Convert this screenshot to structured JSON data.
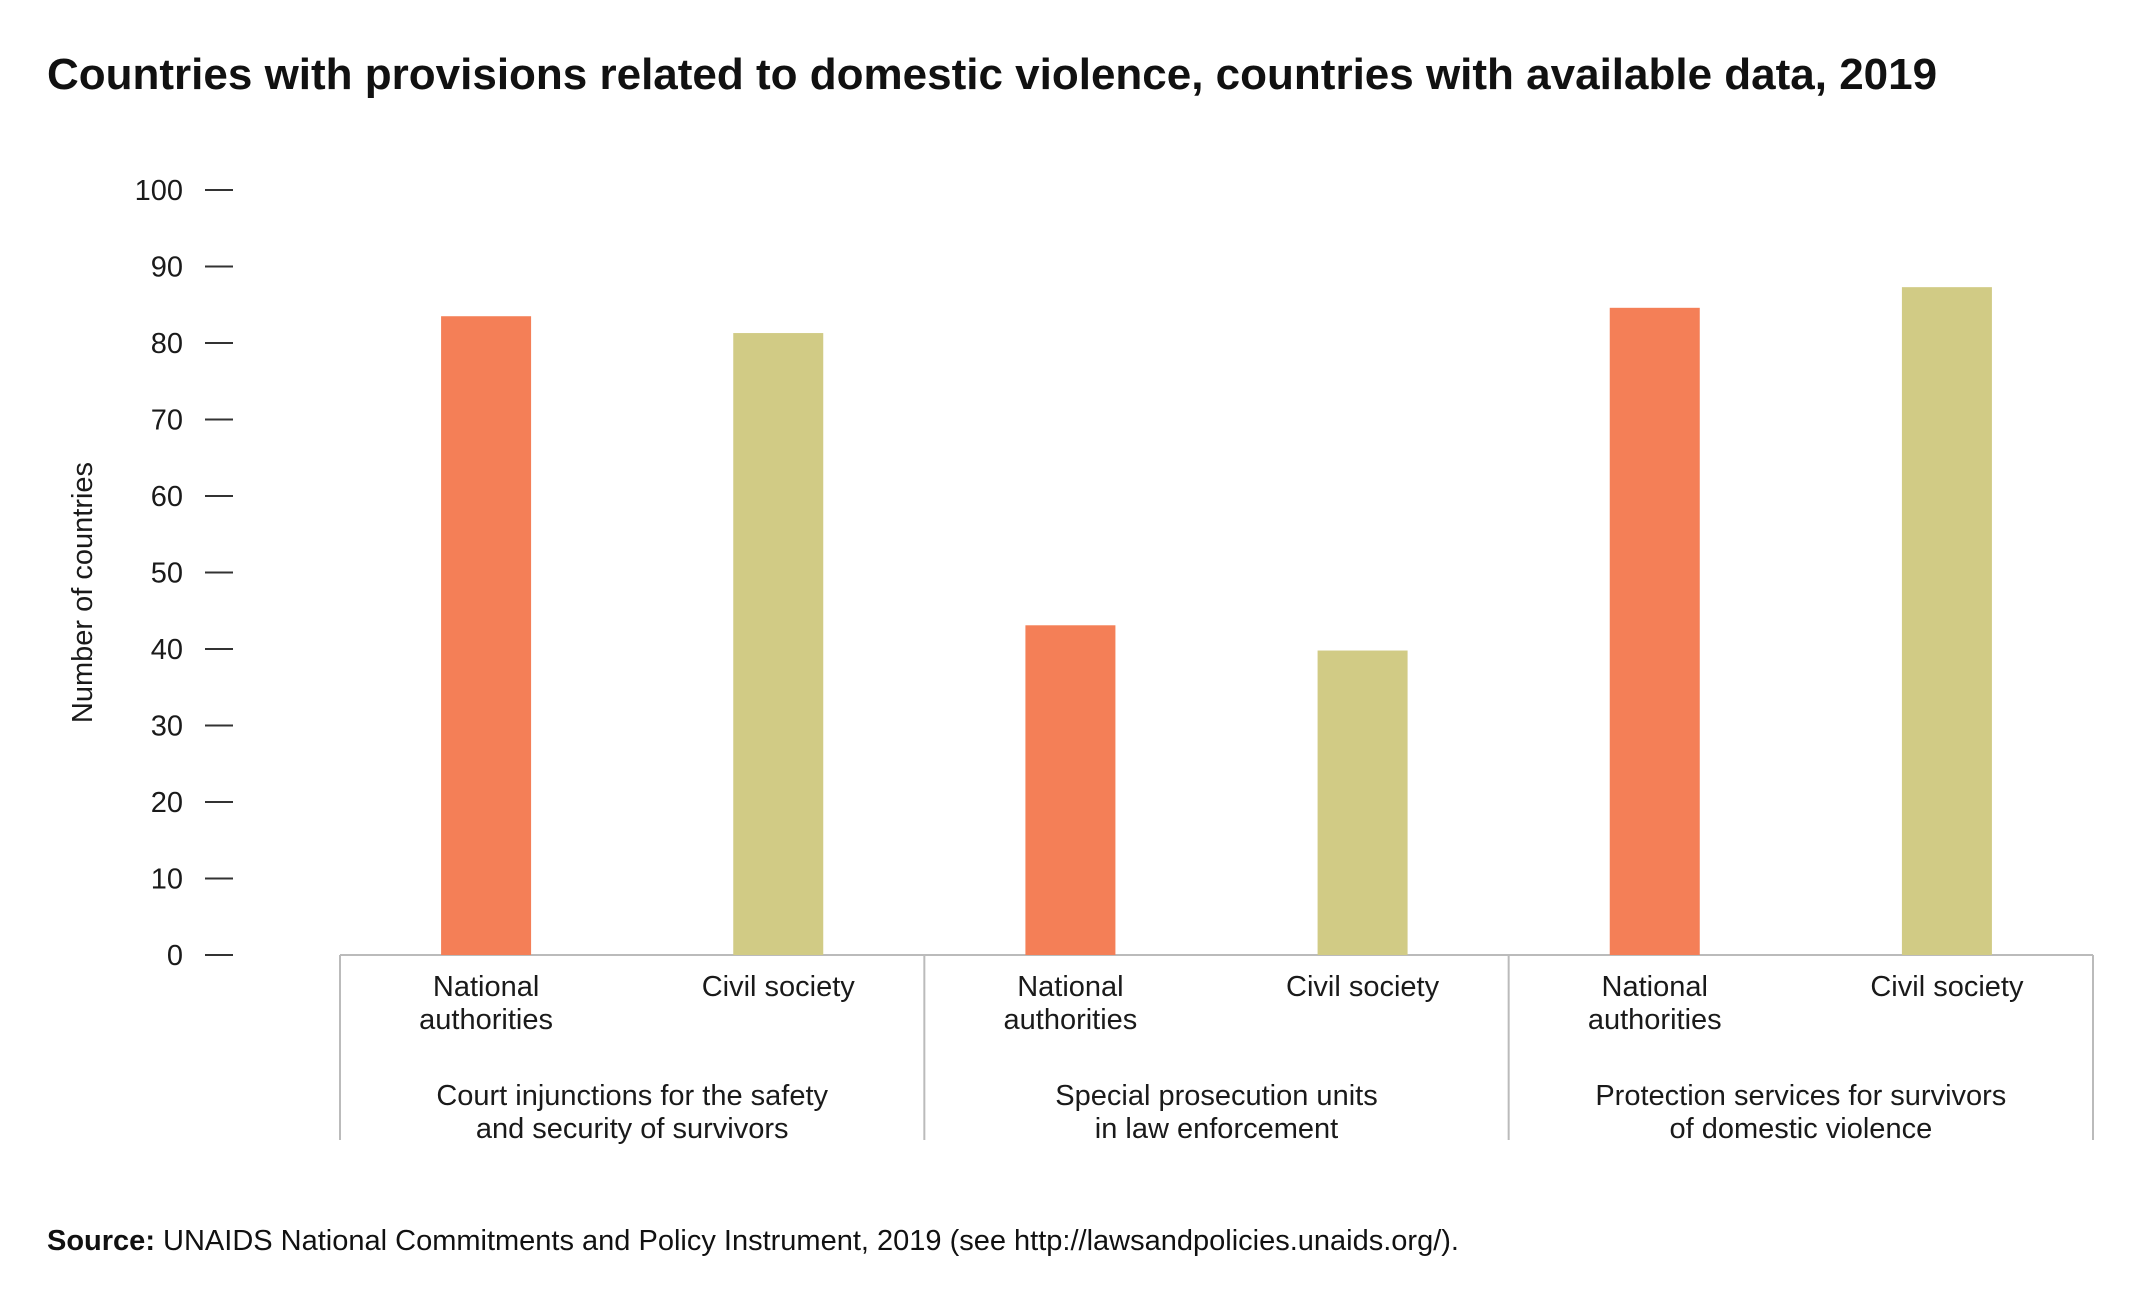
{
  "title": "Countries with provisions related to domestic violence, countries with available data, 2019",
  "source": {
    "label": "Source:",
    "text": " UNAIDS National Commitments and Policy Instrument, 2019 (see http://lawsandpolicies.unaids.org/)."
  },
  "colors": {
    "national_authorities": "#f47f57",
    "civil_society": "#d1cb85",
    "axis": "#bbbbbb",
    "text": "#1a1a1a"
  },
  "chart_data": {
    "type": "bar",
    "ylabel": "Number of countries",
    "ylim": [
      0,
      100
    ],
    "yticks": [
      0,
      10,
      20,
      30,
      40,
      50,
      60,
      70,
      80,
      90,
      100
    ],
    "groups": [
      {
        "label": [
          "Court injunctions for the safety",
          "and security of survivors"
        ],
        "bars": [
          {
            "label": [
              "National",
              "authorities"
            ],
            "series": "national_authorities",
            "value": 83.5
          },
          {
            "label": [
              "Civil society"
            ],
            "series": "civil_society",
            "value": 81.3
          }
        ]
      },
      {
        "label": [
          "Special prosecution units",
          "in law enforcement"
        ],
        "bars": [
          {
            "label": [
              "National",
              "authorities"
            ],
            "series": "national_authorities",
            "value": 43.1
          },
          {
            "label": [
              "Civil society"
            ],
            "series": "civil_society",
            "value": 39.8
          }
        ]
      },
      {
        "label": [
          "Protection services for survivors",
          "of domestic violence"
        ],
        "bars": [
          {
            "label": [
              "National",
              "authorities"
            ],
            "series": "national_authorities",
            "value": 84.6
          },
          {
            "label": [
              "Civil society"
            ],
            "series": "civil_society",
            "value": 87.3
          }
        ]
      }
    ],
    "grid": false,
    "legend": "none"
  }
}
